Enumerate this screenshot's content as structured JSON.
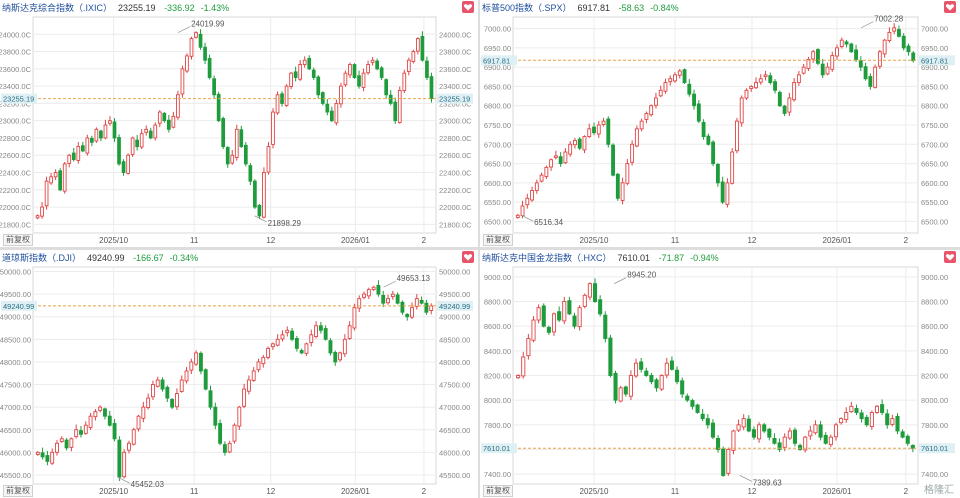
{
  "colors": {
    "up": "#e04545",
    "down": "#1e9c3c",
    "ref": "#e8a24a",
    "grid": "#ececec",
    "axis": "#888888",
    "name": "#1f4e9c"
  },
  "adjust_label": "前复权",
  "watermark": "格隆汇",
  "chart_data": [
    {
      "type": "candlestick",
      "name": "纳斯达克综合指数（.IXIC）",
      "last": "23255.19",
      "change": "-336.92",
      "pct": "-1.43%",
      "ylim": [
        21700,
        24200
      ],
      "yticks": [
        21800,
        22000,
        22200,
        22400,
        22600,
        22800,
        23000,
        23200,
        23400,
        23600,
        23800,
        24000
      ],
      "tick_suffix": ".0C",
      "last_label": "23255.19",
      "high": {
        "label": "24019.99",
        "x": 0.36
      },
      "low": {
        "label": "21898.29",
        "x": 0.55
      },
      "xticks": [
        {
          "label": "2025/10",
          "x": 0.2
        },
        {
          "label": "11",
          "x": 0.4
        },
        {
          "label": "12",
          "x": 0.59
        },
        {
          "label": "2026/01",
          "x": 0.8
        },
        {
          "label": "2",
          "x": 0.97
        }
      ],
      "path": [
        21900,
        22000,
        22300,
        22350,
        22400,
        22200,
        22500,
        22600,
        22550,
        22700,
        22650,
        22800,
        22750,
        22900,
        22800,
        22950,
        23000,
        22800,
        22500,
        22400,
        22600,
        22800,
        22700,
        22850,
        22900,
        22800,
        22950,
        23100,
        23000,
        22900,
        23050,
        23300,
        23600,
        23750,
        23950,
        24019,
        23850,
        23700,
        23500,
        23300,
        23000,
        22700,
        22500,
        22600,
        22900,
        22700,
        22500,
        22300,
        22000,
        21898,
        22400,
        22700,
        23100,
        23300,
        23200,
        23400,
        23550,
        23500,
        23650,
        23700,
        23600,
        23500,
        23300,
        23200,
        23100,
        23000,
        23200,
        23400,
        23550,
        23650,
        23500,
        23400,
        23550,
        23650,
        23700,
        23600,
        23500,
        23300,
        23200,
        23000,
        23350,
        23550,
        23700,
        23800,
        23950,
        23700,
        23500,
        23255
      ]
    },
    {
      "type": "candlestick",
      "name": "标普500指数（.SPX）",
      "last": "6917.81",
      "change": "-58.63",
      "pct": "-0.84%",
      "ylim": [
        6470,
        7030
      ],
      "yticks": [
        6500,
        6550,
        6600,
        6650,
        6700,
        6750,
        6800,
        6850,
        6900,
        6950,
        7000
      ],
      "tick_suffix": ".00",
      "last_label": "6917.81",
      "high": {
        "label": "7002.28",
        "x": 0.86
      },
      "low": {
        "label": "6516.34",
        "x": 0.02
      },
      "xticks": [
        {
          "label": "2025/10",
          "x": 0.2
        },
        {
          "label": "11",
          "x": 0.4
        },
        {
          "label": "12",
          "x": 0.59
        },
        {
          "label": "2026/01",
          "x": 0.8
        },
        {
          "label": "2",
          "x": 0.97
        }
      ],
      "path": [
        6516,
        6540,
        6560,
        6580,
        6600,
        6620,
        6640,
        6660,
        6670,
        6650,
        6680,
        6700,
        6710,
        6690,
        6720,
        6740,
        6730,
        6750,
        6760,
        6700,
        6620,
        6560,
        6600,
        6650,
        6700,
        6740,
        6760,
        6780,
        6800,
        6820,
        6840,
        6860,
        6870,
        6880,
        6890,
        6860,
        6830,
        6800,
        6760,
        6720,
        6700,
        6650,
        6600,
        6550,
        6600,
        6680,
        6760,
        6820,
        6840,
        6850,
        6860,
        6870,
        6880,
        6860,
        6840,
        6800,
        6780,
        6820,
        6860,
        6880,
        6900,
        6920,
        6940,
        6910,
        6880,
        6900,
        6930,
        6950,
        6970,
        6960,
        6940,
        6920,
        6900,
        6870,
        6850,
        6900,
        6940,
        6970,
        6990,
        7002,
        6980,
        6950,
        6940,
        6917
      ]
    },
    {
      "type": "candlestick",
      "name": "道琼斯指数（.DJI）",
      "last": "49240.99",
      "change": "-166.67",
      "pct": "-0.34%",
      "ylim": [
        45300,
        50100
      ],
      "yticks": [
        45500,
        46000,
        46500,
        47000,
        47500,
        48000,
        48500,
        49000,
        49500,
        50000
      ],
      "tick_suffix": ".00",
      "last_label": "49240.99",
      "high": {
        "label": "49653.13",
        "x": 0.87
      },
      "low": {
        "label": "45452.03",
        "x": 0.21
      },
      "xticks": [
        {
          "label": "2025/10",
          "x": 0.2
        },
        {
          "label": "11",
          "x": 0.4
        },
        {
          "label": "12",
          "x": 0.59
        },
        {
          "label": "2026/01",
          "x": 0.8
        },
        {
          "label": "2",
          "x": 0.97
        }
      ],
      "path": [
        46000,
        45900,
        45800,
        46000,
        46200,
        46300,
        46100,
        46300,
        46500,
        46400,
        46600,
        46800,
        46900,
        47000,
        46800,
        46600,
        46300,
        45452,
        46000,
        46200,
        46500,
        46800,
        47000,
        47200,
        47500,
        47600,
        47400,
        47200,
        47000,
        47300,
        47600,
        47800,
        48000,
        48200,
        47800,
        47400,
        47000,
        46600,
        46200,
        46000,
        46200,
        46600,
        47000,
        47400,
        47600,
        47800,
        48000,
        48100,
        48300,
        48400,
        48500,
        48600,
        48700,
        48500,
        48300,
        48200,
        48400,
        48600,
        48800,
        48700,
        48500,
        48200,
        48000,
        48200,
        48500,
        48800,
        49200,
        49400,
        49500,
        49600,
        49653,
        49500,
        49300,
        49400,
        49500,
        49300,
        49100,
        49000,
        49200,
        49400,
        49300,
        49100,
        49240
      ]
    },
    {
      "type": "candlestick",
      "name": "纳斯达克中国金龙指数（.HXC）",
      "last": "7610.01",
      "change": "-71.87",
      "pct": "-0.94%",
      "ylim": [
        7320,
        9080
      ],
      "yticks": [
        7400,
        7600,
        7800,
        8000,
        8200,
        8400,
        8600,
        8800,
        9000
      ],
      "tick_suffix": ".00",
      "last_label": "7610.01",
      "high": {
        "label": "8945.20",
        "x": 0.25
      },
      "low": {
        "label": "7389.63",
        "x": 0.56
      },
      "xticks": [
        {
          "label": "2025/10",
          "x": 0.2
        },
        {
          "label": "11",
          "x": 0.4
        },
        {
          "label": "12",
          "x": 0.59
        },
        {
          "label": "2026/01",
          "x": 0.8
        },
        {
          "label": "2",
          "x": 0.97
        }
      ],
      "path": [
        8200,
        8350,
        8500,
        8650,
        8750,
        8600,
        8550,
        8700,
        8650,
        8800,
        8700,
        8600,
        8750,
        8850,
        8945,
        8800,
        8700,
        8500,
        8200,
        8000,
        8100,
        8050,
        8200,
        8300,
        8250,
        8200,
        8150,
        8100,
        8200,
        8300,
        8250,
        8150,
        8050,
        8000,
        7950,
        7900,
        7850,
        7800,
        7700,
        7600,
        7389,
        7600,
        7750,
        7800,
        7850,
        7750,
        7700,
        7800,
        7750,
        7700,
        7650,
        7600,
        7700,
        7750,
        7650,
        7600,
        7700,
        7750,
        7800,
        7700,
        7650,
        7700,
        7800,
        7850,
        7900,
        7950,
        7900,
        7850,
        7800,
        7900,
        7950,
        7900,
        7800,
        7850,
        7750,
        7700,
        7650,
        7610
      ]
    }
  ]
}
